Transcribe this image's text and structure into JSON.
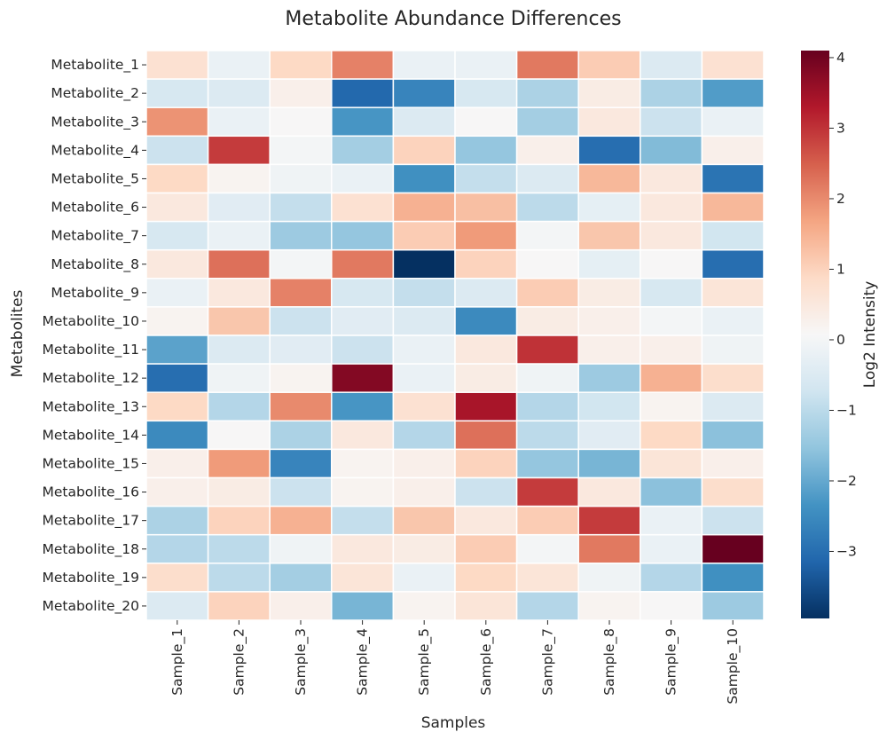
{
  "chart_data": {
    "type": "heatmap",
    "title": "Metabolite Abundance Differences",
    "xlabel": "Samples",
    "ylabel": "Metabolites",
    "colorbar_label": "Log2 Intensity",
    "colormap": "RdBu_r",
    "vmin": -3.95,
    "vmax": 4.1,
    "colorbar_ticks": [
      4,
      3,
      2,
      1,
      0,
      -1,
      -2,
      -3
    ],
    "colorbar_tick_labels": [
      "4",
      "3",
      "2",
      "1",
      "0",
      "−1",
      "−2",
      "−3"
    ],
    "columns": [
      "Sample_1",
      "Sample_2",
      "Sample_3",
      "Sample_4",
      "Sample_5",
      "Sample_6",
      "Sample_7",
      "Sample_8",
      "Sample_9",
      "Sample_10"
    ],
    "rows": [
      "Metabolite_1",
      "Metabolite_2",
      "Metabolite_3",
      "Metabolite_4",
      "Metabolite_5",
      "Metabolite_6",
      "Metabolite_7",
      "Metabolite_8",
      "Metabolite_9",
      "Metabolite_10",
      "Metabolite_11",
      "Metabolite_12",
      "Metabolite_13",
      "Metabolite_14",
      "Metabolite_15",
      "Metabolite_16",
      "Metabolite_17",
      "Metabolite_18",
      "Metabolite_19",
      "Metabolite_20"
    ],
    "values": [
      [
        0.7,
        -0.2,
        0.9,
        2.1,
        -0.2,
        -0.2,
        2.2,
        1.1,
        -0.5,
        0.7
      ],
      [
        -0.6,
        -0.5,
        0.3,
        -3.1,
        -2.6,
        -0.6,
        -1.2,
        0.4,
        -1.2,
        -2.2
      ],
      [
        1.9,
        -0.2,
        0.1,
        -2.3,
        -0.5,
        0.1,
        -1.3,
        0.5,
        -0.8,
        -0.2
      ],
      [
        -0.8,
        2.9,
        0.0,
        -1.3,
        1.0,
        -1.5,
        0.3,
        -3.0,
        -1.7,
        0.3
      ],
      [
        0.9,
        0.2,
        -0.1,
        -0.2,
        -2.4,
        -0.9,
        -0.5,
        1.4,
        0.5,
        -2.9
      ],
      [
        0.5,
        -0.4,
        -0.9,
        0.7,
        1.5,
        1.3,
        -1.0,
        -0.3,
        0.5,
        1.4
      ],
      [
        -0.6,
        -0.2,
        -1.4,
        -1.5,
        1.1,
        1.8,
        0.0,
        1.2,
        0.5,
        -0.7
      ],
      [
        0.5,
        2.3,
        0.0,
        2.2,
        -3.95,
        1.0,
        0.1,
        -0.3,
        0.1,
        -3.0
      ],
      [
        -0.2,
        0.5,
        2.1,
        -0.6,
        -0.9,
        -0.5,
        1.1,
        0.4,
        -0.6,
        0.6
      ],
      [
        0.2,
        1.2,
        -0.8,
        -0.4,
        -0.5,
        -2.5,
        0.4,
        0.3,
        0.0,
        -0.2
      ],
      [
        -2.1,
        -0.5,
        -0.4,
        -0.8,
        -0.2,
        0.5,
        3.0,
        0.3,
        0.3,
        -0.1
      ],
      [
        -3.0,
        -0.1,
        0.2,
        3.8,
        -0.2,
        0.4,
        -0.1,
        -1.4,
        1.5,
        0.8
      ],
      [
        0.9,
        -1.1,
        2.0,
        -2.3,
        0.7,
        3.4,
        -1.1,
        -0.7,
        0.2,
        -0.5
      ],
      [
        -2.5,
        0.1,
        -1.2,
        0.5,
        -1.1,
        2.3,
        -1.0,
        -0.4,
        0.9,
        -1.6
      ],
      [
        0.3,
        1.8,
        -2.6,
        0.2,
        0.3,
        1.0,
        -1.5,
        -1.8,
        0.6,
        0.3
      ],
      [
        0.3,
        0.4,
        -0.8,
        0.2,
        0.3,
        -0.8,
        2.9,
        0.5,
        -1.6,
        0.8
      ],
      [
        -1.2,
        1.0,
        1.5,
        -0.9,
        1.2,
        0.5,
        1.1,
        2.9,
        -0.2,
        -0.8
      ],
      [
        -1.1,
        -1.0,
        -0.1,
        0.5,
        0.4,
        1.1,
        0.0,
        2.2,
        -0.2,
        4.1
      ],
      [
        0.8,
        -1.0,
        -1.3,
        0.6,
        -0.2,
        0.9,
        0.6,
        -0.1,
        -1.1,
        -2.4
      ],
      [
        -0.5,
        1.0,
        0.3,
        -1.8,
        0.2,
        0.6,
        -1.1,
        0.2,
        0.1,
        -1.4
      ]
    ]
  }
}
